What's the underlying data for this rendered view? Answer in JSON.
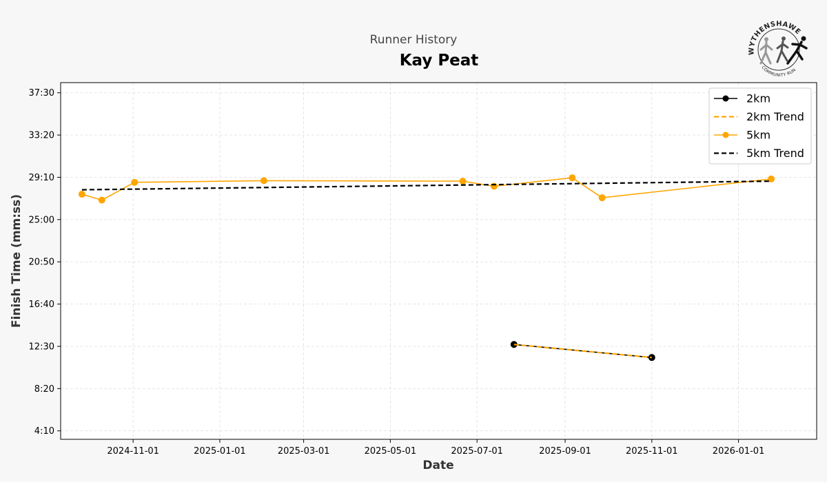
{
  "header": {
    "subtitle": "Runner History",
    "title": "Kay Peat"
  },
  "logo": {
    "top_text": "WYTHENSHAWE",
    "bottom_text": "COMMUNITY RUN"
  },
  "colors": {
    "series_2km": "#000000",
    "series_5km": "#FFA500",
    "grid": "#dddddd",
    "background": "#f7f7f7"
  },
  "chart_data": {
    "type": "line",
    "title": "Kay Peat",
    "subtitle": "Runner History",
    "xlabel": "Date",
    "ylabel": "Finish Time (mm:ss)",
    "xlim": [
      "2024-09-11",
      "2026-02-25"
    ],
    "ylim_seconds": [
      200,
      2310
    ],
    "x_ticks": [
      "2024-11-01",
      "2025-01-01",
      "2025-03-01",
      "2025-05-01",
      "2025-07-01",
      "2025-09-01",
      "2025-11-01",
      "2026-01-01"
    ],
    "y_ticks": [
      "4:10",
      "8:20",
      "12:30",
      "16:40",
      "20:50",
      "25:00",
      "29:10",
      "33:20",
      "37:30"
    ],
    "grid": true,
    "legend_position": "top-right",
    "series": [
      {
        "name": "2km",
        "style": "line-marker",
        "color": "#000000",
        "points": [
          {
            "x": "2025-07-27",
            "y": "12:41"
          },
          {
            "x": "2025-11-01",
            "y": "11:24"
          }
        ]
      },
      {
        "name": "2km Trend",
        "style": "dashed",
        "color": "#FFA500",
        "points": [
          {
            "x": "2025-07-27",
            "y": "12:41"
          },
          {
            "x": "2025-11-01",
            "y": "11:24"
          }
        ]
      },
      {
        "name": "5km",
        "style": "line-marker",
        "color": "#FFA500",
        "points": [
          {
            "x": "2024-09-26",
            "y": "27:30"
          },
          {
            "x": "2024-10-10",
            "y": "26:55"
          },
          {
            "x": "2024-11-02",
            "y": "28:40"
          },
          {
            "x": "2025-02-01",
            "y": "28:50"
          },
          {
            "x": "2025-06-21",
            "y": "28:47"
          },
          {
            "x": "2025-07-13",
            "y": "28:17"
          },
          {
            "x": "2025-09-06",
            "y": "29:07"
          },
          {
            "x": "2025-09-27",
            "y": "27:09"
          },
          {
            "x": "2026-01-24",
            "y": "29:00"
          }
        ]
      },
      {
        "name": "5km Trend",
        "style": "dashed",
        "color": "#000000",
        "points": [
          {
            "x": "2024-09-26",
            "y": "27:56"
          },
          {
            "x": "2026-01-24",
            "y": "28:47"
          }
        ]
      }
    ]
  }
}
